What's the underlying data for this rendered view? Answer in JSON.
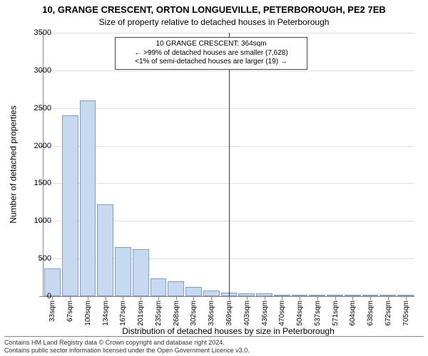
{
  "title_line1": "10, GRANGE CRESCENT, ORTON LONGUEVILLE, PETERBOROUGH, PE2 7EB",
  "title_line2": "Size of property relative to detached houses in Peterborough",
  "chart": {
    "type": "histogram",
    "ylabel": "Number of detached properties",
    "xlabel": "Distribution of detached houses by size in Peterborough",
    "ylim": [
      0,
      3500
    ],
    "ytick_step": 500,
    "x_categories": [
      "33sqm",
      "67sqm",
      "100sqm",
      "134sqm",
      "167sqm",
      "201sqm",
      "235sqm",
      "268sqm",
      "302sqm",
      "336sqm",
      "369sqm",
      "403sqm",
      "436sqm",
      "470sqm",
      "504sqm",
      "537sqm",
      "571sqm",
      "604sqm",
      "638sqm",
      "672sqm",
      "705sqm"
    ],
    "values": [
      370,
      2400,
      2600,
      1220,
      650,
      620,
      240,
      200,
      120,
      80,
      50,
      40,
      40,
      20,
      10,
      10,
      10,
      5,
      5,
      5,
      5
    ],
    "bar_fill": "#c6d9f0",
    "bar_border": "#7f9fc9",
    "grid_color": "#e0e0e0",
    "axis_color": "#888888",
    "reference_line": {
      "at_category_index": 10,
      "color": "#d00000"
    },
    "annotation": {
      "line1": "10 GRANGE CRESCENT: 364sqm",
      "line2": "← >99% of detached houses are smaller (7,628)",
      "line3": "<1% of semi-detached houses are larger (19) →"
    }
  },
  "footer": {
    "line1": "Contains HM Land Registry data © Crown copyright and database right 2024.",
    "line2": "Contains public sector information licensed under the Open Government Licence v3.0."
  }
}
